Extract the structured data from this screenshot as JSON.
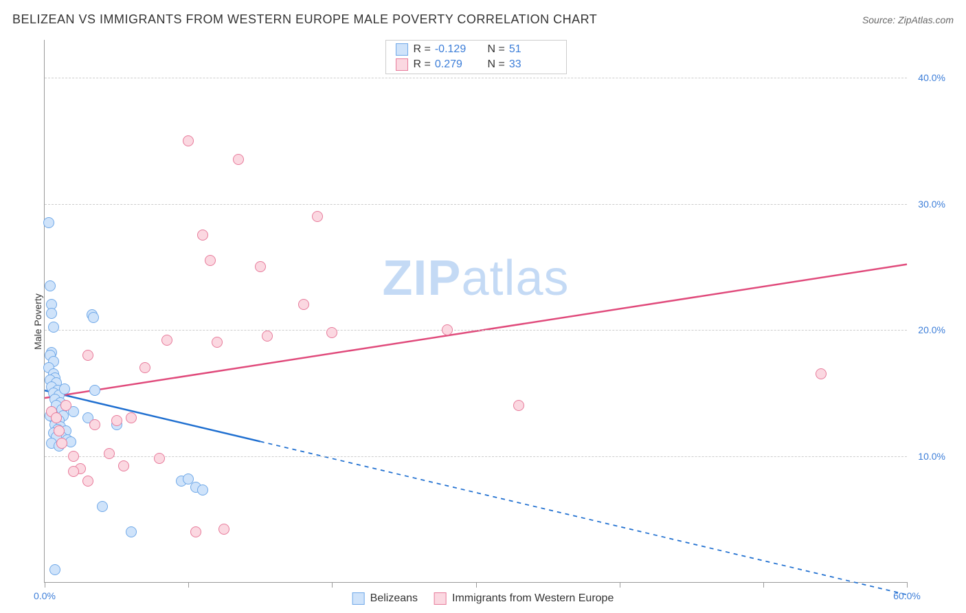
{
  "title": "BELIZEAN VS IMMIGRANTS FROM WESTERN EUROPE MALE POVERTY CORRELATION CHART",
  "source": "Source: ZipAtlas.com",
  "ylabel": "Male Poverty",
  "watermark_a": "ZIP",
  "watermark_b": "atlas",
  "chart": {
    "type": "scatter-correlation",
    "background_color": "#ffffff",
    "grid_color": "#cccccc",
    "axis_color": "#999999",
    "tick_label_color": "#3b7dd8",
    "xlim": [
      0,
      60
    ],
    "ylim": [
      0,
      43
    ],
    "x_ticks": [
      0,
      10,
      20,
      30,
      40,
      50,
      60
    ],
    "x_tick_labels": {
      "0": "0.0%",
      "60": "60.0%"
    },
    "y_gridlines": [
      10,
      20,
      30,
      40
    ],
    "y_tick_labels": {
      "10": "10.0%",
      "20": "20.0%",
      "30": "30.0%",
      "40": "40.0%"
    },
    "marker_radius": 8,
    "marker_border_width": 1.5,
    "series": [
      {
        "name": "Belizeans",
        "fill": "#cfe3fa",
        "stroke": "#6fa8e8",
        "R": "-0.129",
        "N": "51",
        "trend": {
          "color": "#1f6fd0",
          "width": 2.5,
          "y_at_x0": 15.2,
          "y_at_x60": -1.0,
          "solid_until_x": 15,
          "dash": "6,6"
        },
        "points": [
          [
            0.3,
            28.5
          ],
          [
            0.4,
            23.5
          ],
          [
            0.5,
            22.0
          ],
          [
            0.5,
            21.3
          ],
          [
            0.6,
            20.2
          ],
          [
            0.5,
            18.2
          ],
          [
            0.4,
            18.0
          ],
          [
            0.6,
            17.5
          ],
          [
            0.3,
            17.0
          ],
          [
            0.6,
            16.5
          ],
          [
            0.7,
            16.2
          ],
          [
            0.4,
            16.0
          ],
          [
            0.8,
            15.8
          ],
          [
            0.5,
            15.5
          ],
          [
            0.9,
            15.2
          ],
          [
            0.6,
            15.0
          ],
          [
            1.0,
            14.8
          ],
          [
            0.7,
            14.5
          ],
          [
            1.1,
            14.2
          ],
          [
            0.8,
            14.0
          ],
          [
            1.2,
            13.7
          ],
          [
            0.5,
            13.5
          ],
          [
            1.3,
            13.2
          ],
          [
            0.6,
            13.0
          ],
          [
            1.4,
            15.3
          ],
          [
            0.4,
            13.2
          ],
          [
            1.0,
            12.8
          ],
          [
            0.7,
            12.5
          ],
          [
            1.1,
            12.3
          ],
          [
            0.9,
            12.1
          ],
          [
            1.5,
            12.0
          ],
          [
            0.6,
            11.8
          ],
          [
            1.2,
            11.5
          ],
          [
            1.6,
            11.3
          ],
          [
            0.8,
            11.5
          ],
          [
            1.8,
            11.1
          ],
          [
            0.5,
            11.0
          ],
          [
            1.0,
            10.8
          ],
          [
            3.0,
            13.0
          ],
          [
            3.3,
            21.2
          ],
          [
            3.4,
            21.0
          ],
          [
            3.5,
            15.2
          ],
          [
            4.0,
            6.0
          ],
          [
            9.5,
            8.0
          ],
          [
            10.0,
            8.2
          ],
          [
            10.5,
            7.5
          ],
          [
            11.0,
            7.3
          ],
          [
            6.0,
            4.0
          ],
          [
            5.0,
            12.5
          ],
          [
            0.7,
            1.0
          ],
          [
            2.0,
            13.5
          ]
        ]
      },
      {
        "name": "Immigrants from Western Europe",
        "fill": "#fbd8e1",
        "stroke": "#e77a9a",
        "R": "0.279",
        "N": "33",
        "trend": {
          "color": "#e04a7b",
          "width": 2.5,
          "y_at_x0": 14.6,
          "y_at_x60": 25.2,
          "solid_until_x": 60,
          "dash": null
        },
        "points": [
          [
            0.5,
            13.5
          ],
          [
            0.8,
            13.0
          ],
          [
            1.0,
            12.0
          ],
          [
            1.2,
            11.0
          ],
          [
            1.5,
            14.0
          ],
          [
            2.0,
            10.0
          ],
          [
            2.5,
            9.0
          ],
          [
            3.0,
            18.0
          ],
          [
            3.5,
            12.5
          ],
          [
            4.5,
            10.2
          ],
          [
            5.0,
            12.8
          ],
          [
            5.5,
            9.2
          ],
          [
            6.0,
            13.0
          ],
          [
            7.0,
            17.0
          ],
          [
            8.0,
            9.8
          ],
          [
            8.5,
            19.2
          ],
          [
            10.0,
            35.0
          ],
          [
            10.5,
            4.0
          ],
          [
            11.0,
            27.5
          ],
          [
            11.5,
            25.5
          ],
          [
            12.0,
            19.0
          ],
          [
            12.5,
            4.2
          ],
          [
            13.5,
            33.5
          ],
          [
            15.0,
            25.0
          ],
          [
            15.5,
            19.5
          ],
          [
            18.0,
            22.0
          ],
          [
            19.0,
            29.0
          ],
          [
            20.0,
            19.8
          ],
          [
            28.0,
            20.0
          ],
          [
            33.0,
            14.0
          ],
          [
            54.0,
            16.5
          ],
          [
            2.0,
            8.8
          ],
          [
            3.0,
            8.0
          ]
        ]
      }
    ]
  },
  "legend_bottom": [
    {
      "label": "Belizeans",
      "fill": "#cfe3fa",
      "stroke": "#6fa8e8"
    },
    {
      "label": "Immigrants from Western Europe",
      "fill": "#fbd8e1",
      "stroke": "#e77a9a"
    }
  ]
}
